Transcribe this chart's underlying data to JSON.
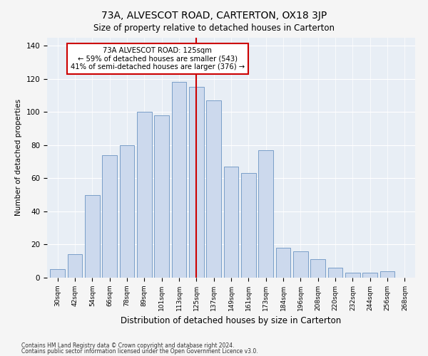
{
  "title": "73A, ALVESCOT ROAD, CARTERTON, OX18 3JP",
  "subtitle": "Size of property relative to detached houses in Carterton",
  "xlabel": "Distribution of detached houses by size in Carterton",
  "ylabel": "Number of detached properties",
  "bar_labels": [
    "30sqm",
    "42sqm",
    "54sqm",
    "66sqm",
    "78sqm",
    "89sqm",
    "101sqm",
    "113sqm",
    "125sqm",
    "137sqm",
    "149sqm",
    "161sqm",
    "173sqm",
    "184sqm",
    "196sqm",
    "208sqm",
    "220sqm",
    "232sqm",
    "244sqm",
    "256sqm",
    "268sqm"
  ],
  "bar_heights": [
    5,
    14,
    50,
    74,
    80,
    100,
    98,
    118,
    115,
    107,
    67,
    63,
    77,
    18,
    16,
    11,
    6,
    3,
    3,
    4,
    0
  ],
  "bar_color": "#ccd9ed",
  "bar_edge_color": "#7a9ec8",
  "vline_color": "#cc0000",
  "annotation_text": "73A ALVESCOT ROAD: 125sqm\n← 59% of detached houses are smaller (543)\n41% of semi-detached houses are larger (376) →",
  "annotation_box_color": "#cc0000",
  "ylim": [
    0,
    145
  ],
  "yticks": [
    0,
    20,
    40,
    60,
    80,
    100,
    120,
    140
  ],
  "background_color": "#e8eef5",
  "fig_background": "#f5f5f5",
  "footer1": "Contains HM Land Registry data © Crown copyright and database right 2024.",
  "footer2": "Contains public sector information licensed under the Open Government Licence v3.0."
}
